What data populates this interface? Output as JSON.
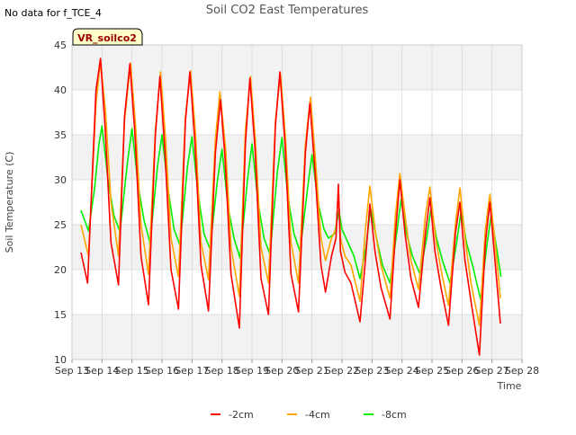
{
  "note": "No data for f_TCE_4",
  "chart_data": {
    "type": "line",
    "title": "Soil CO2 East Temperatures",
    "xlabel": "Time",
    "ylabel": "Soil Temperature (C)",
    "badge": "VR_soilco2",
    "ylim": [
      10,
      45
    ],
    "yticks": [
      10,
      15,
      20,
      25,
      30,
      35,
      40,
      45
    ],
    "xlim": [
      13,
      28
    ],
    "xticks": [
      {
        "x": 13,
        "label": "Sep 13"
      },
      {
        "x": 14,
        "label": "Sep 14"
      },
      {
        "x": 15,
        "label": "Sep 15"
      },
      {
        "x": 16,
        "label": "Sep 16"
      },
      {
        "x": 17,
        "label": "Sep 17"
      },
      {
        "x": 18,
        "label": "Sep 18"
      },
      {
        "x": 19,
        "label": "Sep 19"
      },
      {
        "x": 20,
        "label": "Sep 20"
      },
      {
        "x": 21,
        "label": "Sep 21"
      },
      {
        "x": 22,
        "label": "Sep 22"
      },
      {
        "x": 23,
        "label": "Sep 23"
      },
      {
        "x": 24,
        "label": "Sep 24"
      },
      {
        "x": 25,
        "label": "Sep 25"
      },
      {
        "x": 26,
        "label": "Sep 26"
      },
      {
        "x": 27,
        "label": "Sep 27"
      },
      {
        "x": 28,
        "label": "Sep 28"
      }
    ],
    "grid": true,
    "legend_position": "bottom-center",
    "series": [
      {
        "name": "-2cm",
        "color": "#ff0000",
        "points": [
          [
            13.3,
            21.9
          ],
          [
            13.52,
            18.5
          ],
          [
            13.8,
            40.0
          ],
          [
            13.95,
            43.5
          ],
          [
            14.1,
            36.0
          ],
          [
            14.3,
            23.0
          ],
          [
            14.55,
            18.3
          ],
          [
            14.75,
            37.0
          ],
          [
            14.93,
            42.9
          ],
          [
            15.1,
            35.0
          ],
          [
            15.3,
            21.5
          ],
          [
            15.55,
            16.1
          ],
          [
            15.78,
            35.0
          ],
          [
            15.93,
            41.5
          ],
          [
            16.1,
            33.0
          ],
          [
            16.3,
            20.0
          ],
          [
            16.55,
            15.6
          ],
          [
            16.78,
            36.5
          ],
          [
            16.93,
            42.0
          ],
          [
            17.1,
            34.0
          ],
          [
            17.3,
            20.5
          ],
          [
            17.55,
            15.4
          ],
          [
            17.78,
            33.0
          ],
          [
            17.95,
            38.9
          ],
          [
            18.1,
            32.5
          ],
          [
            18.3,
            19.5
          ],
          [
            18.58,
            13.5
          ],
          [
            18.78,
            34.0
          ],
          [
            18.93,
            41.3
          ],
          [
            19.1,
            33.5
          ],
          [
            19.3,
            19.0
          ],
          [
            19.55,
            15.0
          ],
          [
            19.78,
            36.0
          ],
          [
            19.93,
            42.0
          ],
          [
            20.1,
            34.0
          ],
          [
            20.3,
            19.5
          ],
          [
            20.55,
            15.3
          ],
          [
            20.78,
            33.0
          ],
          [
            20.93,
            38.5
          ],
          [
            21.1,
            31.0
          ],
          [
            21.3,
            20.5
          ],
          [
            21.45,
            17.5
          ],
          [
            21.65,
            21.5
          ],
          [
            21.8,
            23.5
          ],
          [
            21.88,
            29.5
          ],
          [
            21.95,
            22.0
          ],
          [
            22.1,
            19.7
          ],
          [
            22.3,
            18.5
          ],
          [
            22.6,
            14.2
          ],
          [
            22.78,
            21.0
          ],
          [
            22.93,
            27.3
          ],
          [
            23.1,
            22.0
          ],
          [
            23.3,
            18.0
          ],
          [
            23.6,
            14.5
          ],
          [
            23.78,
            24.0
          ],
          [
            23.93,
            30.0
          ],
          [
            24.1,
            24.0
          ],
          [
            24.3,
            19.0
          ],
          [
            24.55,
            15.8
          ],
          [
            24.78,
            24.0
          ],
          [
            24.93,
            28.0
          ],
          [
            25.1,
            22.0
          ],
          [
            25.3,
            18.0
          ],
          [
            25.55,
            13.8
          ],
          [
            25.78,
            24.0
          ],
          [
            25.93,
            27.5
          ],
          [
            26.1,
            21.0
          ],
          [
            26.3,
            16.5
          ],
          [
            26.58,
            10.5
          ],
          [
            26.78,
            23.0
          ],
          [
            26.93,
            27.5
          ],
          [
            27.1,
            21.0
          ],
          [
            27.28,
            14.0
          ]
        ]
      },
      {
        "name": "-4cm",
        "color": "#ffa500",
        "points": [
          [
            13.3,
            25.0
          ],
          [
            13.55,
            21.5
          ],
          [
            13.8,
            38.5
          ],
          [
            13.95,
            43.2
          ],
          [
            14.12,
            37.5
          ],
          [
            14.3,
            27.5
          ],
          [
            14.55,
            21.5
          ],
          [
            14.75,
            36.5
          ],
          [
            14.95,
            43.0
          ],
          [
            15.12,
            36.0
          ],
          [
            15.3,
            25.0
          ],
          [
            15.55,
            19.5
          ],
          [
            15.78,
            35.5
          ],
          [
            15.95,
            42.0
          ],
          [
            16.12,
            34.5
          ],
          [
            16.3,
            23.5
          ],
          [
            16.55,
            19.2
          ],
          [
            16.78,
            37.0
          ],
          [
            16.95,
            42.1
          ],
          [
            17.12,
            35.0
          ],
          [
            17.3,
            23.0
          ],
          [
            17.55,
            18.9
          ],
          [
            17.78,
            34.5
          ],
          [
            17.93,
            39.8
          ],
          [
            18.12,
            33.5
          ],
          [
            18.3,
            22.5
          ],
          [
            18.58,
            17.0
          ],
          [
            18.78,
            35.5
          ],
          [
            18.95,
            41.5
          ],
          [
            19.12,
            34.0
          ],
          [
            19.3,
            22.5
          ],
          [
            19.55,
            18.5
          ],
          [
            19.78,
            36.5
          ],
          [
            19.95,
            41.8
          ],
          [
            20.12,
            34.5
          ],
          [
            20.3,
            23.0
          ],
          [
            20.55,
            18.5
          ],
          [
            20.78,
            34.0
          ],
          [
            20.95,
            39.2
          ],
          [
            21.12,
            32.0
          ],
          [
            21.3,
            23.5
          ],
          [
            21.45,
            21.0
          ],
          [
            21.65,
            23.5
          ],
          [
            21.8,
            24.5
          ],
          [
            21.88,
            28.5
          ],
          [
            21.95,
            23.5
          ],
          [
            22.1,
            21.5
          ],
          [
            22.3,
            20.5
          ],
          [
            22.6,
            16.5
          ],
          [
            22.78,
            24.5
          ],
          [
            22.93,
            29.3
          ],
          [
            23.12,
            24.0
          ],
          [
            23.3,
            20.5
          ],
          [
            23.6,
            16.8
          ],
          [
            23.78,
            26.0
          ],
          [
            23.93,
            30.7
          ],
          [
            24.12,
            25.5
          ],
          [
            24.3,
            21.0
          ],
          [
            24.55,
            17.8
          ],
          [
            24.78,
            26.0
          ],
          [
            24.93,
            29.2
          ],
          [
            25.12,
            23.5
          ],
          [
            25.3,
            20.0
          ],
          [
            25.55,
            16.0
          ],
          [
            25.78,
            25.0
          ],
          [
            25.93,
            29.1
          ],
          [
            26.12,
            23.0
          ],
          [
            26.3,
            18.5
          ],
          [
            26.58,
            13.8
          ],
          [
            26.78,
            24.5
          ],
          [
            26.93,
            28.4
          ],
          [
            27.12,
            22.5
          ],
          [
            27.28,
            16.8
          ]
        ]
      },
      {
        "name": "-8cm",
        "color": "#00ee00",
        "points": [
          [
            13.3,
            26.6
          ],
          [
            13.55,
            24.3
          ],
          [
            13.75,
            29.0
          ],
          [
            13.9,
            34.0
          ],
          [
            14.0,
            36.0
          ],
          [
            14.2,
            30.0
          ],
          [
            14.4,
            26.0
          ],
          [
            14.6,
            24.2
          ],
          [
            14.85,
            32.0
          ],
          [
            15.0,
            35.7
          ],
          [
            15.2,
            29.5
          ],
          [
            15.4,
            25.5
          ],
          [
            15.6,
            23.0
          ],
          [
            15.85,
            31.5
          ],
          [
            16.0,
            35.0
          ],
          [
            16.2,
            29.0
          ],
          [
            16.4,
            24.5
          ],
          [
            16.6,
            22.7
          ],
          [
            16.85,
            31.5
          ],
          [
            17.0,
            34.8
          ],
          [
            17.2,
            28.5
          ],
          [
            17.4,
            24.0
          ],
          [
            17.6,
            22.3
          ],
          [
            17.85,
            30.0
          ],
          [
            18.0,
            33.4
          ],
          [
            18.2,
            27.0
          ],
          [
            18.4,
            23.5
          ],
          [
            18.6,
            21.3
          ],
          [
            18.85,
            30.0
          ],
          [
            19.0,
            34.0
          ],
          [
            19.2,
            27.5
          ],
          [
            19.4,
            23.5
          ],
          [
            19.6,
            21.7
          ],
          [
            19.85,
            31.0
          ],
          [
            20.0,
            34.7
          ],
          [
            20.2,
            28.0
          ],
          [
            20.4,
            24.0
          ],
          [
            20.6,
            22.0
          ],
          [
            20.85,
            29.0
          ],
          [
            21.0,
            32.8
          ],
          [
            21.2,
            27.5
          ],
          [
            21.4,
            24.5
          ],
          [
            21.55,
            23.5
          ],
          [
            21.75,
            24.0
          ],
          [
            21.9,
            26.5
          ],
          [
            22.0,
            24.5
          ],
          [
            22.2,
            23.0
          ],
          [
            22.4,
            21.5
          ],
          [
            22.6,
            19.0
          ],
          [
            22.8,
            22.5
          ],
          [
            22.95,
            26.8
          ],
          [
            23.15,
            23.5
          ],
          [
            23.35,
            20.5
          ],
          [
            23.6,
            18.5
          ],
          [
            23.82,
            24.0
          ],
          [
            23.97,
            27.8
          ],
          [
            24.15,
            24.0
          ],
          [
            24.35,
            21.5
          ],
          [
            24.6,
            19.5
          ],
          [
            24.82,
            23.5
          ],
          [
            24.97,
            26.9
          ],
          [
            25.15,
            23.5
          ],
          [
            25.35,
            21.0
          ],
          [
            25.6,
            18.5
          ],
          [
            25.82,
            23.0
          ],
          [
            25.97,
            26.5
          ],
          [
            26.15,
            23.0
          ],
          [
            26.35,
            20.5
          ],
          [
            26.62,
            16.7
          ],
          [
            26.82,
            22.5
          ],
          [
            26.97,
            26.0
          ],
          [
            27.15,
            22.5
          ],
          [
            27.3,
            19.2
          ]
        ]
      }
    ]
  }
}
